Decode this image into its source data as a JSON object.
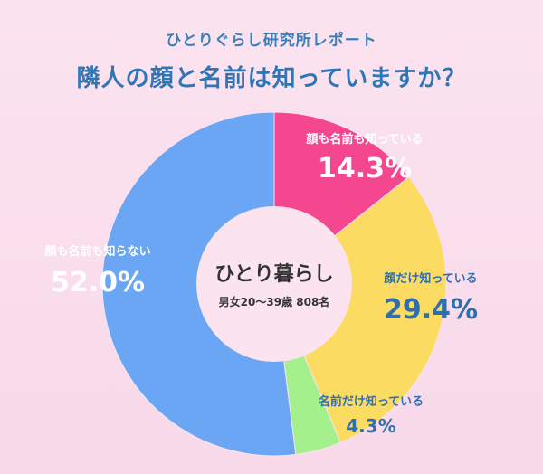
{
  "header": {
    "subtitle": "ひとりぐらし研究所レポート",
    "title": "隣人の顔と名前は知っていますか？"
  },
  "center": {
    "main": "ひとり暮らし",
    "sub": "男女20〜39歳 808名"
  },
  "chart_data": {
    "type": "pie",
    "title": "隣人の顔と名前は知っていますか？",
    "subtitle": "ひとりぐらし研究所レポート",
    "legend": "none",
    "slices": [
      {
        "label": "顔も名前も知っている",
        "value": 14.3,
        "display": "14.3%",
        "color": "#f4478f"
      },
      {
        "label": "顔だけ知っている",
        "value": 29.4,
        "display": "29.4%",
        "color": "#fcdb62"
      },
      {
        "label": "名前だけ知っている",
        "value": 4.3,
        "display": "4.3%",
        "color": "#a4f08c"
      },
      {
        "label": "顔も名前も知らない",
        "value": 52.0,
        "display": "52.0%",
        "color": "#6aa6f3"
      }
    ]
  }
}
